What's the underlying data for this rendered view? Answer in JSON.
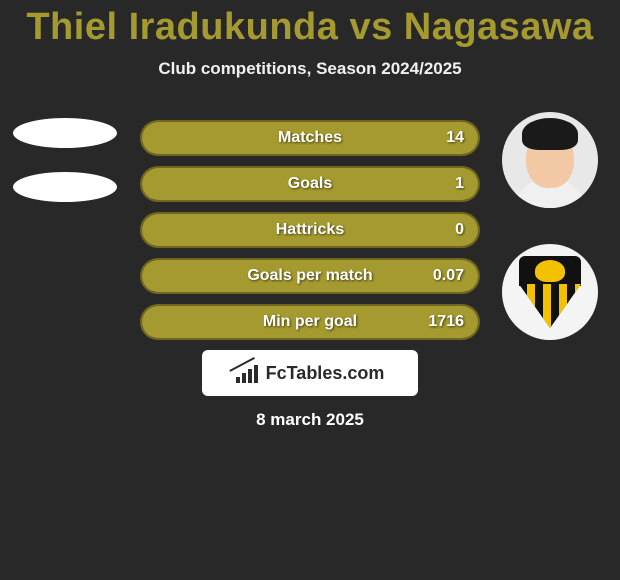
{
  "header": {
    "title": "Thiel Iradukunda vs Nagasawa",
    "title_color": "#a59a2f",
    "subtitle": "Club competitions, Season 2024/2025"
  },
  "stats": {
    "bar_fill_color": "#a59a2f",
    "bar_border_color": "#6f6620",
    "rows": [
      {
        "label": "Matches",
        "value_right": "14",
        "fill_pct": 100
      },
      {
        "label": "Goals",
        "value_right": "1",
        "fill_pct": 100
      },
      {
        "label": "Hattricks",
        "value_right": "0",
        "fill_pct": 100
      },
      {
        "label": "Goals per match",
        "value_right": "0.07",
        "fill_pct": 100
      },
      {
        "label": "Min per goal",
        "value_right": "1716",
        "fill_pct": 100
      }
    ]
  },
  "left_player": {
    "placeholder_count": 2
  },
  "right_player": {
    "has_photo": true,
    "club_crest": {
      "primary_color": "#111111",
      "accent_color": "#f2c200",
      "name": "Wellington Phoenix"
    }
  },
  "brand": {
    "text": "FcTables.com"
  },
  "date": "8 march 2025",
  "colors": {
    "background": "#282828",
    "text": "#ffffff"
  }
}
